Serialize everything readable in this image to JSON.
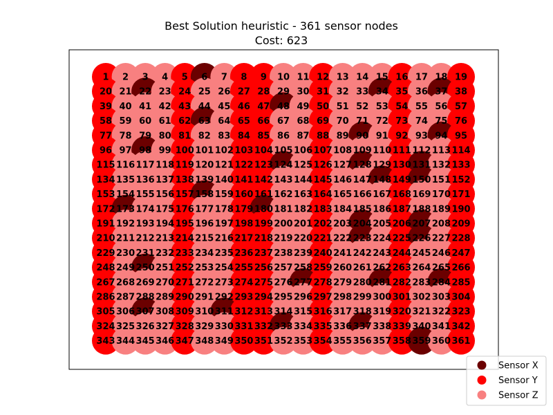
{
  "chart_data": {
    "type": "scatter",
    "title": "Best Solution heuristic - 361 sensor nodes",
    "subtitle": "Cost: 623",
    "xlabel": "",
    "ylabel": "",
    "grid": false,
    "axis_ticks": false,
    "grid_size": [
      19,
      19
    ],
    "node_count": 361,
    "legend_position": "bottom-right-outside",
    "series": [
      {
        "name": "Sensor X",
        "color": "#6b0000",
        "nodes": [
          6,
          22,
          34,
          37,
          48,
          63,
          90,
          94,
          98,
          124,
          128,
          131,
          148,
          150,
          158,
          173,
          180,
          204,
          207,
          223,
          226,
          250,
          277,
          281,
          284,
          307,
          311,
          333,
          337,
          359
        ]
      },
      {
        "name": "Sensor Y",
        "color": "#ff0000",
        "nodes": [
          1,
          5,
          8,
          9,
          12,
          16,
          19,
          20,
          24,
          27,
          28,
          31,
          35,
          38,
          39,
          43,
          46,
          47,
          50,
          54,
          57,
          58,
          62,
          65,
          66,
          69,
          73,
          76,
          77,
          81,
          84,
          85,
          88,
          92,
          95,
          96,
          100,
          103,
          104,
          107,
          111,
          114,
          115,
          119,
          122,
          123,
          126,
          130,
          133,
          134,
          138,
          141,
          142,
          145,
          149,
          152,
          153,
          157,
          160,
          161,
          164,
          168,
          171,
          172,
          176,
          179,
          183,
          187,
          190,
          191,
          195,
          198,
          199,
          202,
          206,
          209,
          210,
          214,
          217,
          218,
          221,
          225,
          228,
          229,
          233,
          236,
          237,
          240,
          244,
          247,
          248,
          252,
          255,
          256,
          259,
          263,
          266,
          267,
          271,
          274,
          275,
          278,
          282,
          285,
          286,
          290,
          293,
          294,
          297,
          301,
          304,
          305,
          309,
          312,
          313,
          316,
          320,
          323,
          324,
          328,
          331,
          332,
          335,
          339,
          342,
          343,
          347,
          350,
          351,
          354,
          358,
          361
        ]
      },
      {
        "name": "Sensor Z",
        "color": "#f88080",
        "nodes": []
      }
    ],
    "labels_visible": true
  }
}
